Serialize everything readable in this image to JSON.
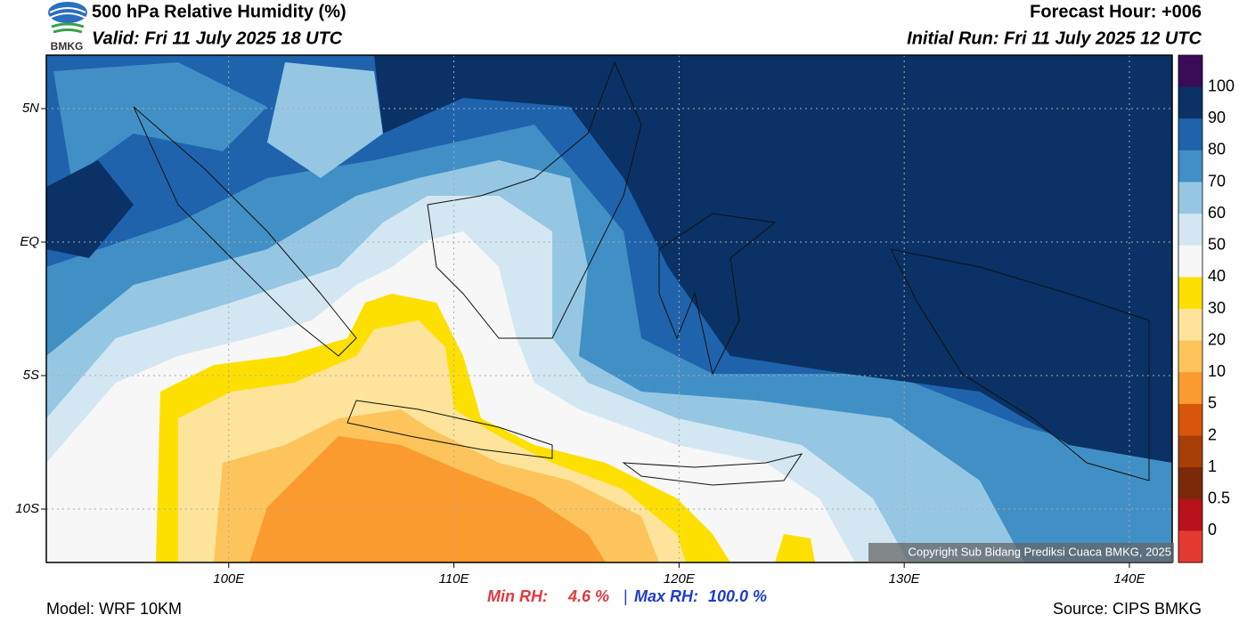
{
  "header": {
    "title": "500 hPa Relative Humidity (%)",
    "valid": "Valid: Fri 11 July 2025 18 UTC",
    "forecast_hour": "Forecast Hour: +006",
    "initial_run": "Initial Run: Fri 11 July 2025 12 UTC",
    "logo_text": "BMKG"
  },
  "map": {
    "xlim": [
      91.9,
      141.9
    ],
    "ylim": [
      -12,
      7
    ],
    "xticks": [
      {
        "value": 100,
        "label": "100E"
      },
      {
        "value": 110,
        "label": "110E"
      },
      {
        "value": 120,
        "label": "120E"
      },
      {
        "value": 130,
        "label": "130E"
      },
      {
        "value": 140,
        "label": "140E"
      }
    ],
    "yticks": [
      {
        "value": 5,
        "label": "5N"
      },
      {
        "value": 0,
        "label": "EQ"
      },
      {
        "value": -5,
        "label": "5S"
      },
      {
        "value": -10,
        "label": "10S"
      }
    ],
    "grid": true,
    "copyright": "Copyright Sub Bidang Prediksi Cuaca BMKG, 2025"
  },
  "colorbar": {
    "levels": [
      100,
      90,
      80,
      70,
      60,
      50,
      40,
      30,
      20,
      10,
      5,
      2,
      1,
      0.5,
      0
    ],
    "colors": [
      "#3a0b57",
      "#0a3266",
      "#1f63ad",
      "#4190c5",
      "#95c7e3",
      "#d3e7f2",
      "#f7f7f7",
      "#fde000",
      "#fde49a",
      "#fdc45c",
      "#fb9a2f",
      "#d8560c",
      "#a83f07",
      "#7a2a08",
      "#b8121b",
      "#e53a30"
    ]
  },
  "footer": {
    "min_rh_label": "Min RH:",
    "min_rh": "4.6 %",
    "separator": "|",
    "max_rh_label": "Max RH:",
    "max_rh": "100.0 %",
    "model": "Model: WRF 10KM",
    "source": "Source: CIPS BMKG"
  }
}
